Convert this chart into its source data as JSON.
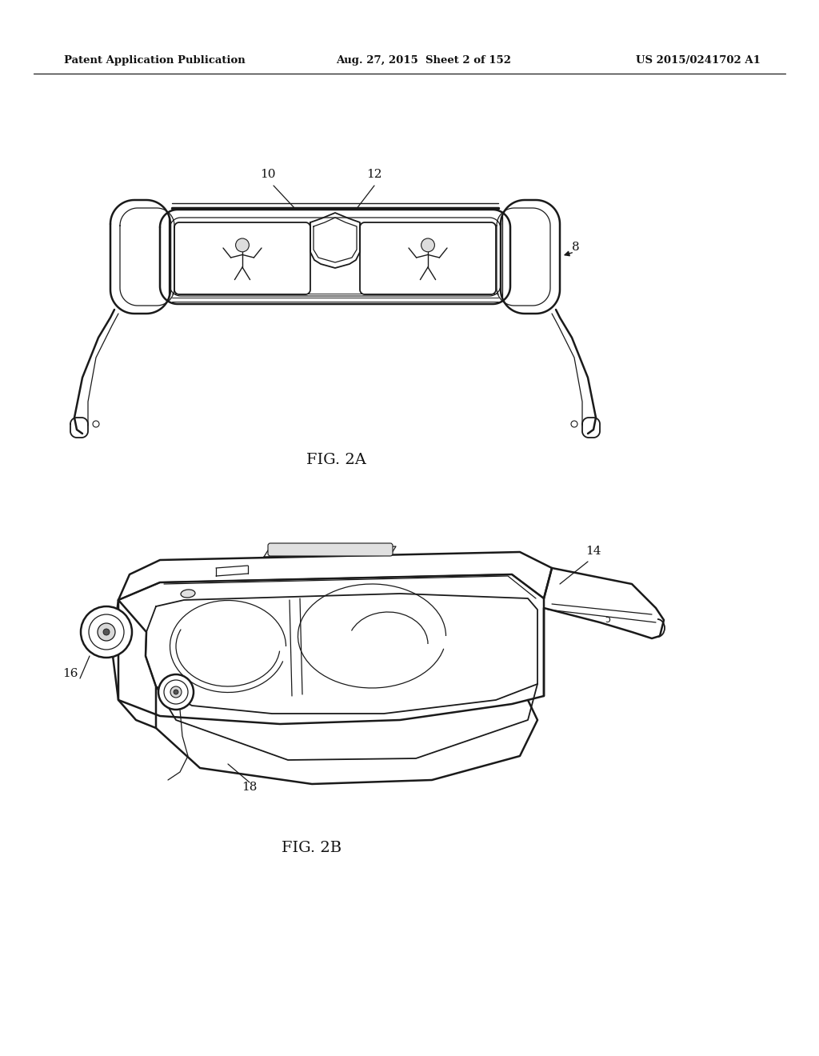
{
  "background_color": "#ffffff",
  "header_left": "Patent Application Publication",
  "header_center": "Aug. 27, 2015  Sheet 2 of 152",
  "header_right": "US 2015/0241702 A1",
  "fig2a_label": "FIG. 2A",
  "fig2b_label": "FIG. 2B",
  "line_color": "#1a1a1a",
  "text_color": "#111111",
  "header_fontsize": 9.5,
  "label_fontsize": 14,
  "ref_fontsize": 11
}
